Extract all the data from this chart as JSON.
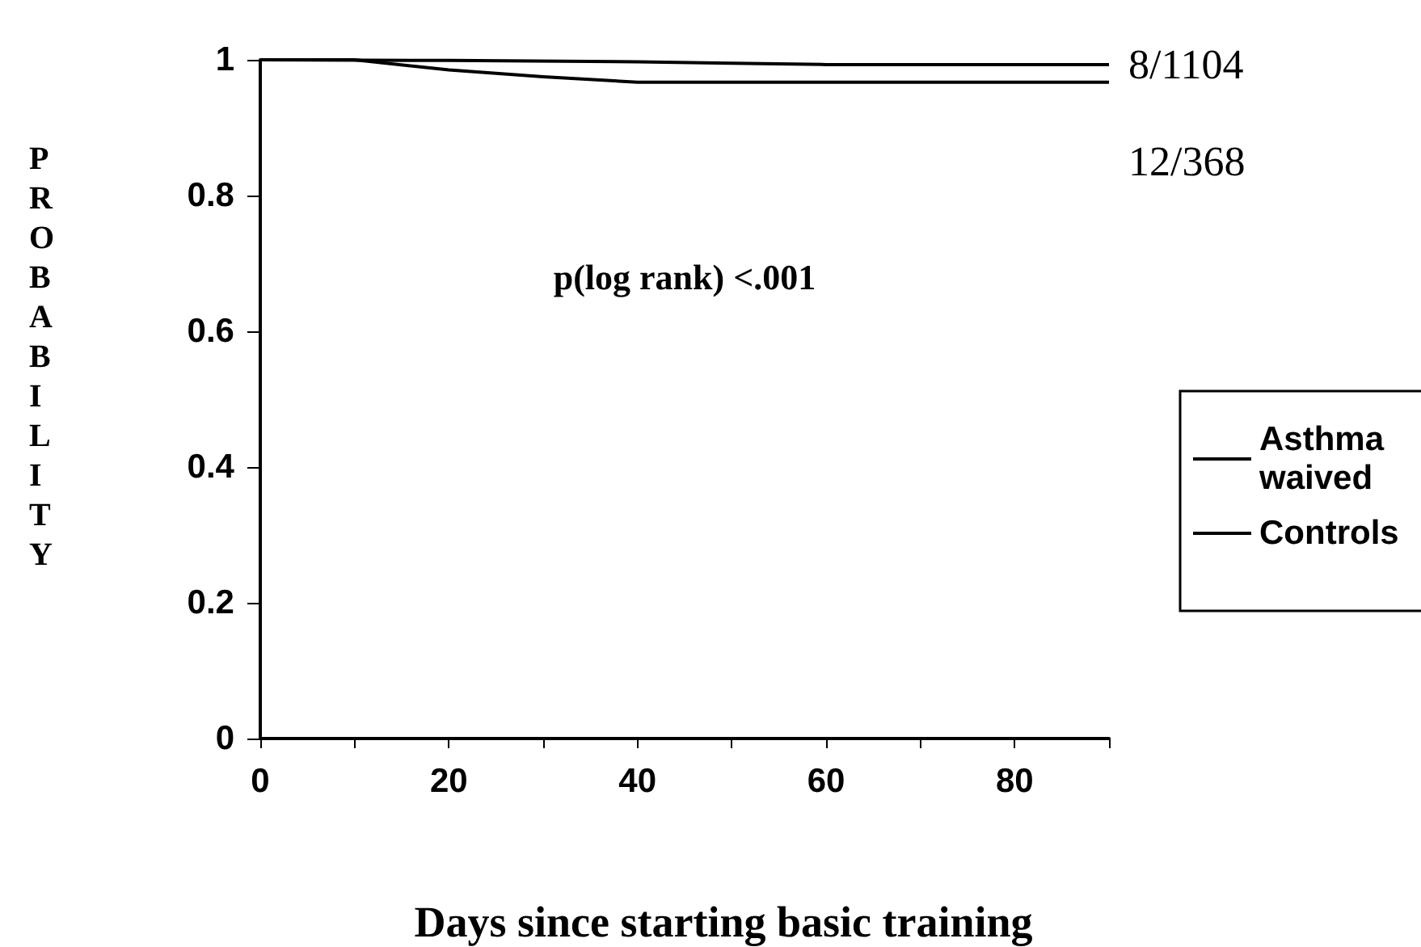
{
  "chart_data": {
    "type": "line",
    "xlabel": "Days since starting basic training",
    "ylabel": "PROBABILITY",
    "xlim": [
      0,
      90
    ],
    "xticks": [
      0,
      {
        "value": 10,
        "label": null
      },
      20,
      {
        "value": 30,
        "label": null
      },
      40,
      {
        "value": 50,
        "label": null
      },
      60,
      {
        "value": 70,
        "label": null
      },
      80,
      {
        "value": 90,
        "label": null
      }
    ],
    "ylim": [
      0,
      1
    ],
    "yticks": [
      0,
      0.2,
      0.4,
      0.6,
      0.8,
      1
    ],
    "series": [
      {
        "name": "Asthma waived",
        "color": "#000000",
        "x": [
          0,
          10,
          20,
          30,
          40,
          90
        ],
        "values": [
          1,
          1,
          0.985,
          0.975,
          0.967,
          0.967
        ]
      },
      {
        "name": "Controls",
        "color": "#000000",
        "x": [
          0,
          20,
          40,
          50,
          60,
          90
        ],
        "values": [
          1,
          0.999,
          0.997,
          0.995,
          0.993,
          0.993
        ]
      }
    ],
    "annotations": [
      "p(log rank) <.001",
      {
        "text": "8/1104",
        "x": 90,
        "y": 0.993
      },
      {
        "text": "12/368",
        "x": 90,
        "y": 0.967
      }
    ],
    "legend": "right",
    "grid": false,
    "marker": "none",
    "line_style": "solid"
  }
}
